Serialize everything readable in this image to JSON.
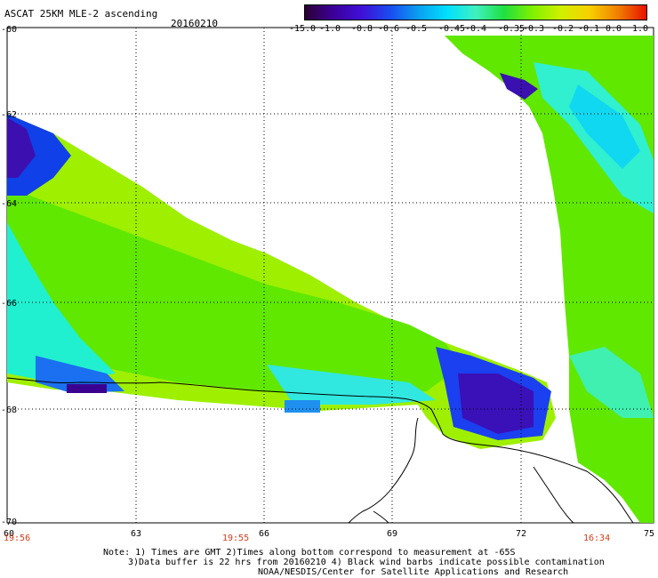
{
  "header": {
    "title": "ASCAT 25KM MLE-2 ascending",
    "date": "20160210"
  },
  "colorbar": {
    "labels": [
      "-15.0",
      "-1.0",
      "-0.8",
      "-0.6",
      "-0.5",
      "-0.45",
      "-0.4",
      "-0.35",
      "-0.3",
      "-0.2",
      "-0.1",
      "0.0",
      "1.0"
    ],
    "colors": [
      "#2b0033",
      "#3c009a",
      "#4010d8",
      "#1a4cf0",
      "#0aa0f0",
      "#00e0ff",
      "#40f0c0",
      "#20e040",
      "#80f000",
      "#d0f000",
      "#f8d000",
      "#f08000",
      "#e81000"
    ]
  },
  "axes": {
    "y_labels": [
      "-60",
      "-62",
      "-64",
      "-66",
      "-68",
      "-70"
    ],
    "x_labels": [
      "60",
      "63",
      "66",
      "69",
      "72",
      "75"
    ],
    "gmt_times": [
      "19:56",
      "19:55",
      "16:34"
    ]
  },
  "notes": [
    "Note: 1) Times are GMT 2)Times along bottom correspond to measurement at -65S",
    "3)Data buffer is 22 hrs from 20160210 4) Black wind barbs indicate possible contamination",
    "NOAA/NESDIS/Center for Satellite Applications and Research"
  ]
}
